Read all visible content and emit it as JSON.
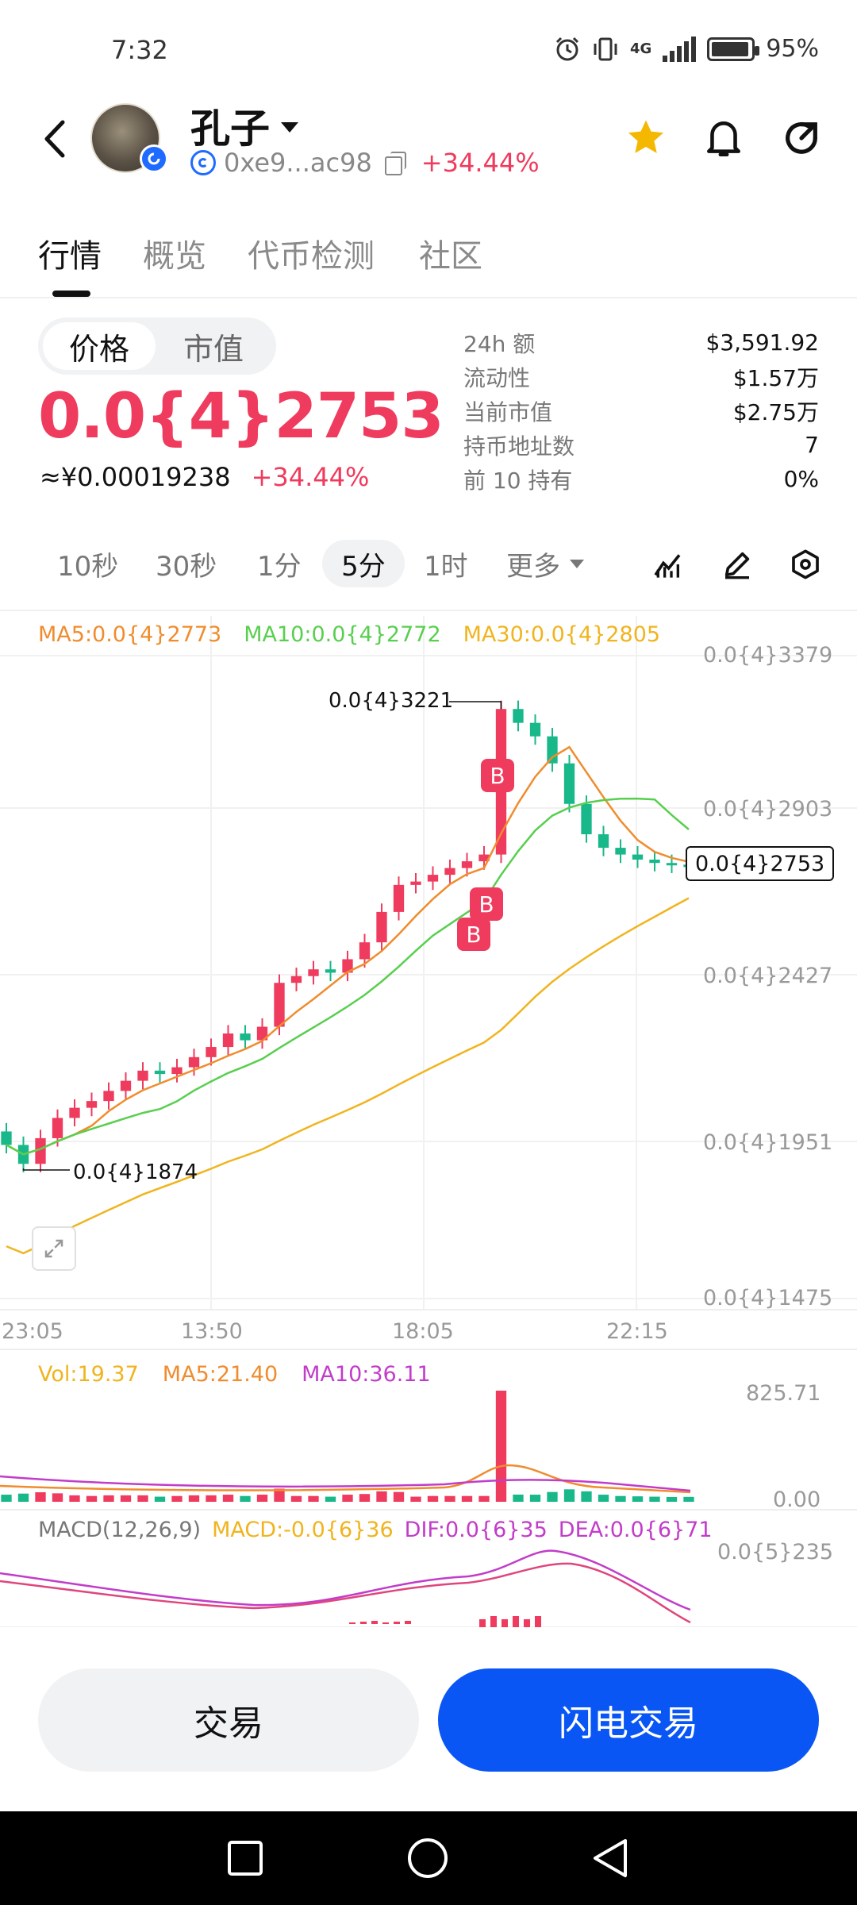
{
  "status_bar": {
    "time": "7:32",
    "network": "4G",
    "battery": "95%",
    "battery_level": 0.95
  },
  "header": {
    "token_name": "孔子",
    "address": "0xe9...ac98",
    "change": "+34.44%"
  },
  "tabs": [
    "行情",
    "概览",
    "代币检测",
    "社区"
  ],
  "price_panel": {
    "toggle_price": "价格",
    "toggle_mcap": "市值",
    "price": "0.0{4}2753",
    "cny_price": "≈¥0.00019238",
    "change": "+34.44%"
  },
  "stats": [
    {
      "label": "24h  额",
      "value": "$3,591.92"
    },
    {
      "label": "流动性",
      "value": "$1.57万"
    },
    {
      "label": "当前市值",
      "value": "$2.75万"
    },
    {
      "label": "持币地址数",
      "value": "7"
    },
    {
      "label": "前 10 持有",
      "value": "0%"
    }
  ],
  "timeframes": {
    "s10": "10秒",
    "s30": "30秒",
    "m1": "1分",
    "m5": "5分",
    "h1": "1时",
    "more": "更多"
  },
  "chart": {
    "ma5": "MA5:0.0{4}2773",
    "ma10": "MA10:0.0{4}2772",
    "ma30": "MA30:0.0{4}2805",
    "y_ticks": [
      "0.0{4}3379",
      "0.0{4}2903",
      "0.0{4}2427",
      "0.0{4}1951",
      "0.0{4}1475"
    ],
    "x_ticks": [
      "23:05",
      "13:50",
      "18:05",
      "22:15"
    ],
    "high_label": "0.0{4}3221",
    "low_label": "0.0{4}1874",
    "current_tag": "0.0{4}2753",
    "marker": "B"
  },
  "volume": {
    "vol": "Vol:19.37",
    "ma5": "MA5:21.40",
    "ma10": "MA10:36.11",
    "y_max": "825.71",
    "y_min": "0.00"
  },
  "macd": {
    "params": "MACD(12,26,9)",
    "macd": "MACD:-0.0{6}36",
    "dif": "DIF:0.0{6}35",
    "dea": "DEA:0.0{6}71",
    "y_max": "0.0{5}235"
  },
  "colors": {
    "up": "#ef3b5d",
    "down": "#19b88a",
    "ma5": "#f08c2d",
    "ma10": "#58cf4f",
    "ma30": "#f0b41e",
    "macd_purple": "#c23cc9",
    "accent": "#0a56f5"
  },
  "actions": {
    "trade": "交易",
    "flash_trade": "闪电交易"
  },
  "chart_data": {
    "type": "candlestick",
    "y_unit": "×1e-4",
    "ylim": [
      0.1475,
      0.3379
    ],
    "close_series": [
      0.193,
      0.1874,
      0.195,
      0.201,
      0.204,
      0.206,
      0.209,
      0.212,
      0.215,
      0.214,
      0.216,
      0.219,
      0.222,
      0.226,
      0.224,
      0.228,
      0.241,
      0.243,
      0.245,
      0.244,
      0.248,
      0.253,
      0.262,
      0.27,
      0.271,
      0.273,
      0.275,
      0.277,
      0.279,
      0.3221,
      0.318,
      0.314,
      0.306,
      0.294,
      0.285,
      0.281,
      0.279,
      0.2775,
      0.2765,
      0.276,
      0.2753
    ],
    "ma5_last": 0.2773,
    "ma10_last": 0.2772,
    "ma30_last": 0.2805,
    "high": 0.3221,
    "low": 0.1874,
    "last": 0.2753
  }
}
